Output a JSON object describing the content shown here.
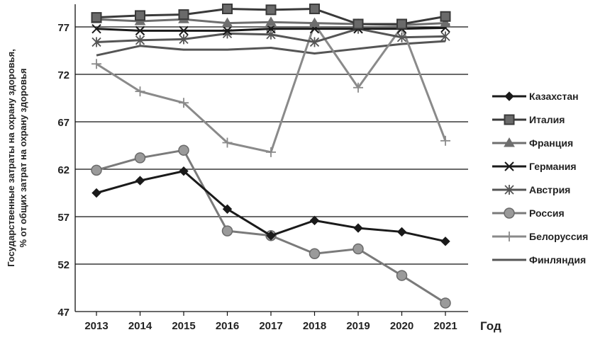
{
  "chart_data": {
    "type": "line",
    "x": [
      2013,
      2014,
      2015,
      2016,
      2017,
      2018,
      2019,
      2020,
      2021
    ],
    "xlabel": "Год",
    "ylabel_line1": "Государственные затраты на охрану здоровья,",
    "ylabel_line2": "% от общих затрат на охрану здоровья",
    "ylim": [
      47,
      80
    ],
    "yticks": [
      47,
      52,
      57,
      62,
      67,
      72,
      77
    ],
    "grid": "horizontal",
    "legend_position": "right",
    "series": [
      {
        "name": "Казахстан",
        "marker": "diamond",
        "color": "#1a1a1a",
        "values": [
          59.5,
          60.8,
          61.8,
          57.8,
          55.0,
          56.6,
          55.8,
          55.4,
          54.4
        ]
      },
      {
        "name": "Италия",
        "marker": "square",
        "color": "#3a3a3a",
        "values": [
          78.0,
          78.2,
          78.3,
          78.9,
          78.8,
          78.9,
          77.3,
          77.3,
          78.1
        ]
      },
      {
        "name": "Франция",
        "marker": "triangle",
        "color": "#6e6e6e",
        "values": [
          77.8,
          77.6,
          77.8,
          77.4,
          77.5,
          77.4,
          77.3,
          77.2,
          77.4
        ]
      },
      {
        "name": "Германия",
        "marker": "x",
        "color": "#1a1a1a",
        "values": [
          76.8,
          76.6,
          76.6,
          76.6,
          76.8,
          76.8,
          76.8,
          76.8,
          76.9
        ]
      },
      {
        "name": "Австрия",
        "marker": "asterisk",
        "color": "#555555",
        "values": [
          75.4,
          75.6,
          75.7,
          76.3,
          76.2,
          75.4,
          76.8,
          75.9,
          76.0
        ]
      },
      {
        "name": "Россия",
        "marker": "circle",
        "color": "#7a7a7a",
        "values": [
          61.9,
          63.2,
          64.0,
          55.5,
          55.0,
          53.1,
          53.6,
          50.8,
          47.9
        ]
      },
      {
        "name": "Белоруссия",
        "marker": "plus",
        "color": "#8a8a8a",
        "values": [
          73.1,
          70.2,
          69.0,
          64.8,
          63.8,
          77.3,
          70.6,
          77.0,
          65.0
        ]
      },
      {
        "name": "Финляндия",
        "marker": "none",
        "color": "#555555",
        "values": [
          74.0,
          75.0,
          74.6,
          74.6,
          74.8,
          74.2,
          74.7,
          75.2,
          75.5
        ]
      }
    ]
  }
}
